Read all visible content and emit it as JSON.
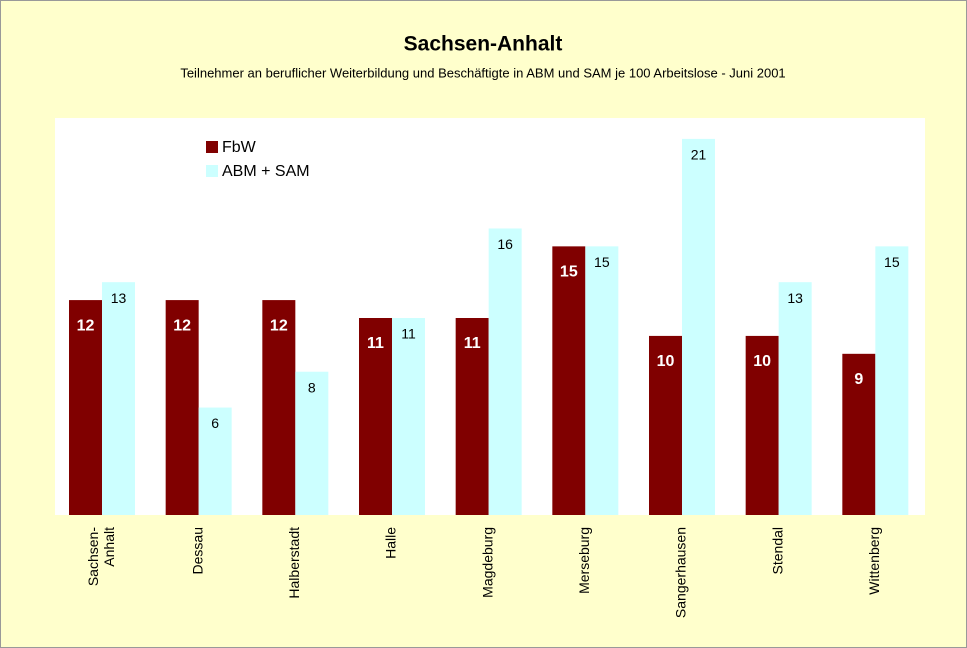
{
  "chart_data": {
    "type": "bar",
    "title": "Sachsen-Anhalt",
    "subtitle": "Teilnehmer an beruflicher Weiterbildung und Beschäftigte in ABM und SAM je 100 Arbeitslose - Juni  2001",
    "categories": [
      "Sachsen-\nAnhalt",
      "Dessau",
      "Halberstadt",
      "Halle",
      "Magdeburg",
      "Merseburg",
      "Sangerhausen",
      "Stendal",
      "Wittenberg"
    ],
    "series": [
      {
        "name": "FbW",
        "color": "#800000",
        "values": [
          12,
          12,
          12,
          11,
          11,
          15,
          10,
          10,
          9
        ]
      },
      {
        "name": "ABM + SAM",
        "color": "#ccffff",
        "values": [
          13,
          6,
          8,
          11,
          16,
          15,
          21,
          13,
          15
        ]
      }
    ],
    "ylim": [
      0,
      22
    ],
    "legend": "upper-left"
  }
}
